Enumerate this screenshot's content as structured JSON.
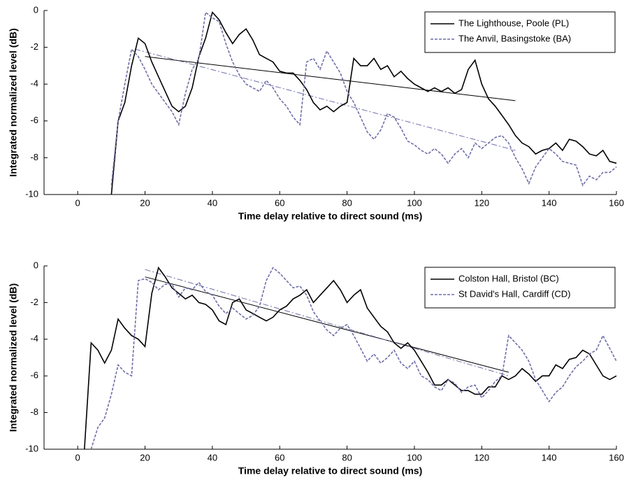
{
  "chart_data": [
    {
      "type": "line",
      "xlabel": "Time delay relative to direct sound (ms)",
      "ylabel": "Integrated normalized level (dB)",
      "xlim": [
        -10,
        160
      ],
      "ylim": [
        -10,
        0
      ],
      "xticks": [
        0,
        20,
        40,
        60,
        80,
        100,
        120,
        140,
        160
      ],
      "yticks": [
        -10,
        -8,
        -6,
        -4,
        -2,
        0
      ],
      "legend": "upper right",
      "x": [
        10,
        12,
        14,
        16,
        18,
        20,
        22,
        24,
        26,
        28,
        30,
        32,
        34,
        36,
        38,
        40,
        42,
        44,
        46,
        48,
        50,
        52,
        54,
        56,
        58,
        60,
        62,
        64,
        66,
        68,
        70,
        72,
        74,
        76,
        78,
        80,
        82,
        84,
        86,
        88,
        90,
        92,
        94,
        96,
        98,
        100,
        102,
        104,
        106,
        108,
        110,
        112,
        114,
        116,
        118,
        120,
        122,
        124,
        126,
        128,
        130,
        132,
        134,
        136,
        138,
        140,
        142,
        144,
        146,
        148,
        150,
        152,
        154,
        156,
        158,
        160
      ],
      "series": [
        {
          "name": "The Lighthouse, Poole (PL)",
          "color": "#000000",
          "line_style": "solid",
          "values": [
            -10,
            -6,
            -5,
            -3,
            -1.5,
            -1.8,
            -2.8,
            -3.6,
            -4.4,
            -5.2,
            -5.5,
            -5.2,
            -4.2,
            -2.5,
            -1.5,
            -0.1,
            -0.5,
            -1.2,
            -1.8,
            -1.3,
            -1.0,
            -1.6,
            -2.4,
            -2.6,
            -2.8,
            -3.3,
            -3.4,
            -3.4,
            -3.8,
            -4.3,
            -5.0,
            -5.4,
            -5.2,
            -5.5,
            -5.2,
            -5.0,
            -2.6,
            -3.0,
            -3.0,
            -2.6,
            -3.2,
            -3.0,
            -3.6,
            -3.3,
            -3.7,
            -4.0,
            -4.2,
            -4.4,
            -4.2,
            -4.4,
            -4.2,
            -4.5,
            -4.3,
            -3.2,
            -2.7,
            -4.0,
            -4.8,
            -5.2,
            -5.7,
            -6.2,
            -6.8,
            -7.2,
            -7.4,
            -7.8,
            -7.6,
            -7.5,
            -7.2,
            -7.6,
            -7.0,
            -7.1,
            -7.4,
            -7.8,
            -7.9,
            -7.6,
            -8.2,
            -8.3
          ]
        },
        {
          "name": "The Anvil, Basingstoke (BA)",
          "color": "#6f6fa8",
          "line_style": "dashed",
          "values": [
            -9.5,
            -6,
            -4,
            -2.1,
            -2.5,
            -3.2,
            -4.0,
            -4.5,
            -5.0,
            -5.5,
            -6.2,
            -4.5,
            -3.2,
            -2.6,
            -0.1,
            -0.4,
            -0.6,
            -1.8,
            -2.8,
            -3.5,
            -4.0,
            -4.2,
            -4.4,
            -3.8,
            -4.2,
            -4.8,
            -5.2,
            -5.8,
            -6.2,
            -2.8,
            -2.6,
            -3.2,
            -2.2,
            -2.8,
            -3.4,
            -4.4,
            -5.0,
            -5.8,
            -6.6,
            -7.0,
            -6.5,
            -5.6,
            -5.8,
            -6.4,
            -7.1,
            -7.3,
            -7.6,
            -7.8,
            -7.5,
            -7.8,
            -8.3,
            -7.8,
            -7.5,
            -8.0,
            -7.2,
            -7.5,
            -7.2,
            -6.9,
            -6.8,
            -7.2,
            -8.0,
            -8.6,
            -9.4,
            -8.5,
            -8.0,
            -7.5,
            -7.8,
            -8.2,
            -8.3,
            -8.4,
            -9.5,
            -9.0,
            -9.2,
            -8.8,
            -8.8,
            -8.5
          ]
        }
      ],
      "trend_lines": [
        {
          "x": [
            20,
            130
          ],
          "values": [
            -2.5,
            -4.9
          ],
          "color": "#000000",
          "line_style": "solid"
        },
        {
          "x": [
            17,
            130
          ],
          "values": [
            -2.1,
            -7.6
          ],
          "color": "#6f6fa8",
          "line_style": "dashdot"
        }
      ]
    },
    {
      "type": "line",
      "xlabel": "Time delay relative to direct sound (ms)",
      "ylabel": "Integrated normalized level (dB)",
      "xlim": [
        -10,
        160
      ],
      "ylim": [
        -10,
        0
      ],
      "xticks": [
        0,
        20,
        40,
        60,
        80,
        100,
        120,
        140,
        160
      ],
      "yticks": [
        -10,
        -8,
        -6,
        -4,
        -2,
        0
      ],
      "legend": "upper right",
      "x": [
        2,
        4,
        6,
        8,
        10,
        12,
        14,
        16,
        18,
        20,
        22,
        24,
        26,
        28,
        30,
        32,
        34,
        36,
        38,
        40,
        42,
        44,
        46,
        48,
        50,
        52,
        54,
        56,
        58,
        60,
        62,
        64,
        66,
        68,
        70,
        72,
        74,
        76,
        78,
        80,
        82,
        84,
        86,
        88,
        90,
        92,
        94,
        96,
        98,
        100,
        102,
        104,
        106,
        108,
        110,
        112,
        114,
        116,
        118,
        120,
        122,
        124,
        126,
        128,
        130,
        132,
        134,
        136,
        138,
        140,
        142,
        144,
        146,
        148,
        150,
        152,
        154,
        156,
        158,
        160
      ],
      "series": [
        {
          "name": "Colston Hall, Bristol (BC)",
          "color": "#000000",
          "line_style": "solid",
          "values": [
            -10,
            -4.2,
            -4.6,
            -5.3,
            -4.6,
            -2.9,
            -3.4,
            -3.8,
            -4.0,
            -4.4,
            -1.5,
            -0.1,
            -0.6,
            -1.2,
            -1.5,
            -1.8,
            -1.6,
            -2.0,
            -2.1,
            -2.4,
            -3.0,
            -3.2,
            -2.0,
            -1.8,
            -2.4,
            -2.6,
            -2.8,
            -3.0,
            -2.8,
            -2.4,
            -2.2,
            -1.8,
            -1.6,
            -1.3,
            -2.0,
            -1.6,
            -1.2,
            -0.8,
            -1.3,
            -2.0,
            -1.6,
            -1.3,
            -2.3,
            -2.8,
            -3.3,
            -3.6,
            -4.2,
            -4.5,
            -4.2,
            -4.6,
            -5.2,
            -5.8,
            -6.5,
            -6.5,
            -6.2,
            -6.5,
            -6.8,
            -6.8,
            -7.0,
            -7.0,
            -6.6,
            -6.6,
            -6.0,
            -6.2,
            -6.0,
            -5.6,
            -5.9,
            -6.3,
            -6.0,
            -6.0,
            -5.4,
            -5.6,
            -5.1,
            -5.0,
            -4.6,
            -4.8,
            -5.4,
            -6.0,
            -6.2,
            -6.0
          ]
        },
        {
          "name": "St David's Hall, Cardiff (CD)",
          "color": "#6f6fa8",
          "line_style": "dashed",
          "values": [
            null,
            -10,
            -8.8,
            -8.3,
            -7.0,
            -5.4,
            -5.8,
            -6.0,
            -0.8,
            -0.7,
            -0.9,
            -1.3,
            -1.0,
            -1.0,
            -1.7,
            -1.2,
            -1.3,
            -0.9,
            -1.4,
            -1.6,
            -2.2,
            -2.6,
            -2.3,
            -2.6,
            -2.9,
            -2.7,
            -2.2,
            -0.8,
            -0.1,
            -0.4,
            -0.8,
            -1.2,
            -1.1,
            -1.6,
            -2.5,
            -3.0,
            -3.5,
            -3.8,
            -3.4,
            -3.2,
            -3.8,
            -4.5,
            -5.2,
            -4.8,
            -5.3,
            -5.0,
            -4.6,
            -5.3,
            -5.6,
            -5.2,
            -6.0,
            -6.2,
            -6.6,
            -6.8,
            -6.2,
            -6.4,
            -6.9,
            -6.6,
            -6.5,
            -7.2,
            -6.8,
            -6.3,
            -6.0,
            -3.8,
            -4.2,
            -4.6,
            -5.2,
            -6.2,
            -6.8,
            -7.4,
            -6.9,
            -6.6,
            -6.0,
            -5.5,
            -5.2,
            -4.8,
            -4.6,
            -3.8,
            -4.5,
            -5.2
          ]
        }
      ],
      "trend_lines": [
        {
          "x": [
            20,
            128
          ],
          "values": [
            -0.6,
            -5.8
          ],
          "color": "#000000",
          "line_style": "solid"
        },
        {
          "x": [
            20,
            128
          ],
          "values": [
            -0.2,
            -6.0
          ],
          "color": "#6f6fa8",
          "line_style": "dashdot"
        }
      ]
    }
  ]
}
